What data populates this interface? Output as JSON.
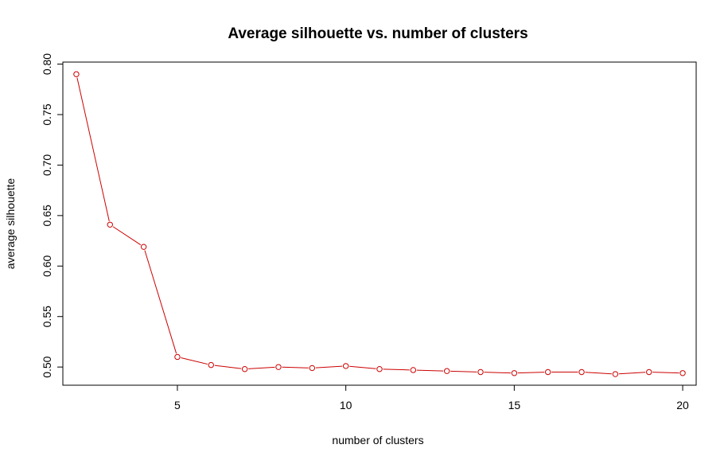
{
  "chart_data": {
    "type": "line",
    "title": "Average silhouette vs. number of clusters",
    "xlabel": "number of clusters",
    "ylabel": "average silhouette",
    "xlim": [
      1.6,
      20.4
    ],
    "ylim": [
      0.482,
      0.802
    ],
    "x_ticks": [
      5,
      10,
      15,
      20
    ],
    "x_tick_labels": [
      "5",
      "10",
      "15",
      "20"
    ],
    "y_ticks": [
      0.5,
      0.55,
      0.6,
      0.65,
      0.7,
      0.75,
      0.8
    ],
    "y_tick_labels": [
      "0.50",
      "0.55",
      "0.60",
      "0.65",
      "0.70",
      "0.75",
      "0.80"
    ],
    "grid": false,
    "legend": "none",
    "series": [
      {
        "color": "#cc0000",
        "marker": "open-circle",
        "x": [
          2,
          3,
          4,
          5,
          6,
          7,
          8,
          9,
          10,
          11,
          12,
          13,
          14,
          15,
          16,
          17,
          18,
          19,
          20
        ],
        "y": [
          0.79,
          0.641,
          0.619,
          0.51,
          0.502,
          0.498,
          0.5,
          0.499,
          0.501,
          0.498,
          0.497,
          0.496,
          0.495,
          0.494,
          0.495,
          0.495,
          0.493,
          0.495,
          0.494
        ]
      }
    ]
  }
}
